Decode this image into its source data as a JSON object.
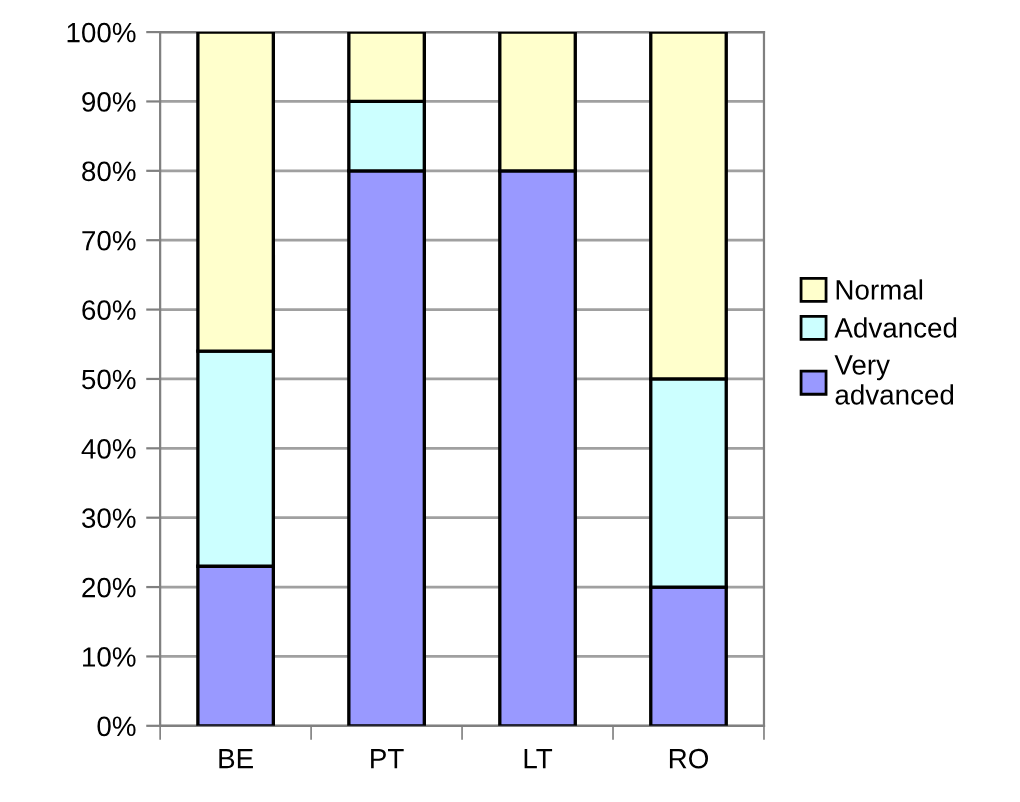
{
  "chart_data": {
    "type": "bar",
    "stacked": true,
    "categories": [
      "BE",
      "PT",
      "LT",
      "RO"
    ],
    "series": [
      {
        "name": "Very\nadvanced",
        "color": "#9999ff",
        "values": [
          23,
          80,
          80,
          20
        ]
      },
      {
        "name": "Advanced",
        "color": "#ccffff",
        "values": [
          31,
          10,
          0,
          30
        ]
      },
      {
        "name": "Normal",
        "color": "#ffffcc",
        "values": [
          46,
          10,
          20,
          50
        ]
      }
    ],
    "ylim": [
      0,
      100
    ],
    "yticks": [
      {
        "value": 0,
        "label": "0%"
      },
      {
        "value": 10,
        "label": "10%"
      },
      {
        "value": 20,
        "label": "20%"
      },
      {
        "value": 30,
        "label": "30%"
      },
      {
        "value": 40,
        "label": "40%"
      },
      {
        "value": 50,
        "label": "50%"
      },
      {
        "value": 60,
        "label": "60%"
      },
      {
        "value": 70,
        "label": "70%"
      },
      {
        "value": 80,
        "label": "80%"
      },
      {
        "value": 90,
        "label": "90%"
      },
      {
        "value": 100,
        "label": "100%"
      }
    ],
    "grid": "y",
    "legend": "right"
  }
}
